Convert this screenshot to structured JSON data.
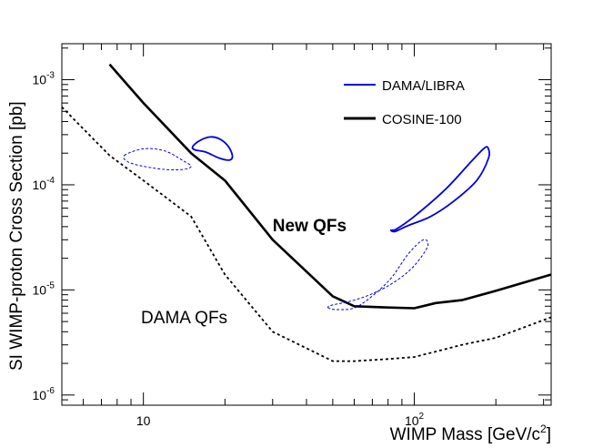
{
  "chart_data": {
    "type": "line",
    "title": "",
    "xlabel": "WIMP Mass [GeV/c",
    "xlabel_sup": "2",
    "xlabel_close": "]",
    "ylabel": "SI WIMP-proton Cross Section [pb]",
    "xscale": "log",
    "yscale": "log",
    "xlim": [
      5,
      320
    ],
    "ylim": [
      8e-07,
      0.0022
    ],
    "x_ticks": [
      {
        "value": 10,
        "base": "10",
        "exp": ""
      },
      {
        "value": 100,
        "base": "10",
        "exp": "2"
      }
    ],
    "y_ticks": [
      {
        "value": 1e-06,
        "base": "10",
        "exp": "-6"
      },
      {
        "value": 1e-05,
        "base": "10",
        "exp": "-5"
      },
      {
        "value": 0.0001,
        "base": "10",
        "exp": "-4"
      },
      {
        "value": 0.001,
        "base": "10",
        "exp": "-3"
      }
    ],
    "grid": false,
    "legend_position": "top-right",
    "legend": [
      {
        "label": "DAMA/LIBRA",
        "color": "#0000dd",
        "style": "solid-thin"
      },
      {
        "label": "COSINE-100",
        "color": "#000000",
        "style": "solid-thick"
      }
    ],
    "series": [
      {
        "name": "COSINE-100",
        "style": "solid",
        "color": "#000000",
        "x": [
          7.5,
          10,
          15,
          20,
          30,
          50,
          60,
          80,
          100,
          120,
          150,
          200,
          320
        ],
        "y": [
          0.0014,
          0.0006,
          0.0002,
          0.00011,
          3e-05,
          8.7e-06,
          7e-06,
          6.8e-06,
          6.7e-06,
          7.5e-06,
          8e-06,
          9.8e-06,
          1.4e-05
        ]
      },
      {
        "name": "",
        "style": "dotted",
        "color": "#000000",
        "x": [
          5,
          7.5,
          10,
          15,
          20,
          30,
          50,
          60,
          80,
          100,
          150,
          200,
          320
        ],
        "y": [
          0.00055,
          0.00019,
          0.00011,
          5e-05,
          1.4e-05,
          4e-06,
          2.1e-06,
          2.1e-06,
          2.2e-06,
          2.3e-06,
          3e-06,
          3.5e-06,
          5.5e-06
        ]
      }
    ],
    "regions": [
      {
        "name": "DAMA/LIBRA",
        "group": "new",
        "style": "solid",
        "color": "#0000dd",
        "points": [
          [
            15.2,
            0.00023
          ],
          [
            16,
            0.00026
          ],
          [
            17.5,
            0.000285
          ],
          [
            19,
            0.000275
          ],
          [
            20.5,
            0.000235
          ],
          [
            21.3,
            0.00019
          ],
          [
            20.8,
            0.000172
          ],
          [
            19,
            0.00018
          ],
          [
            17,
            0.000205
          ],
          [
            15.5,
            0.000215
          ],
          [
            15.2,
            0.00023
          ]
        ]
      },
      {
        "name": "DAMA/LIBRA",
        "group": "new",
        "style": "solid",
        "color": "#0000dd",
        "points": [
          [
            82,
            3.7e-05
          ],
          [
            86,
            3.8e-05
          ],
          [
            100,
            5e-05
          ],
          [
            130,
            9e-05
          ],
          [
            160,
            0.00016
          ],
          [
            180,
            0.00022
          ],
          [
            187,
            0.000225
          ],
          [
            188,
            0.00018
          ],
          [
            170,
            0.00011
          ],
          [
            140,
            7e-05
          ],
          [
            115,
            5e-05
          ],
          [
            95,
            4.1e-05
          ],
          [
            85,
            3.6e-05
          ],
          [
            82,
            3.7e-05
          ]
        ]
      },
      {
        "name": "DAMA/LIBRA",
        "group": "dama",
        "style": "dashed",
        "color": "#0000dd",
        "points": [
          [
            8.5,
            0.00019
          ],
          [
            10,
            0.00022
          ],
          [
            12,
            0.00021
          ],
          [
            14,
            0.00017
          ],
          [
            15,
            0.00015
          ],
          [
            14,
            0.00014
          ],
          [
            12,
            0.00014
          ],
          [
            10,
            0.00015
          ],
          [
            8.8,
            0.000165
          ],
          [
            8.5,
            0.00019
          ]
        ]
      },
      {
        "name": "DAMA/LIBRA",
        "group": "dama",
        "style": "dashed",
        "color": "#0000dd",
        "points": [
          [
            48,
            6.8e-06
          ],
          [
            52,
            6.5e-06
          ],
          [
            62,
            7e-06
          ],
          [
            80,
            1.2e-05
          ],
          [
            95,
            2.2e-05
          ],
          [
            108,
            3e-05
          ],
          [
            112,
            2.6e-05
          ],
          [
            100,
            1.7e-05
          ],
          [
            85,
            1.2e-05
          ],
          [
            70,
            9.2e-06
          ],
          [
            58,
            7.8e-06
          ],
          [
            50,
            7.2e-06
          ],
          [
            48,
            6.8e-06
          ]
        ]
      }
    ],
    "annotations": [
      {
        "text": "New QFs",
        "weight": "bold",
        "x": 30,
        "y": 3.6e-05
      },
      {
        "text": "DAMA QFs",
        "weight": "normal",
        "x": 9.8,
        "y": 4.8e-06
      }
    ]
  }
}
